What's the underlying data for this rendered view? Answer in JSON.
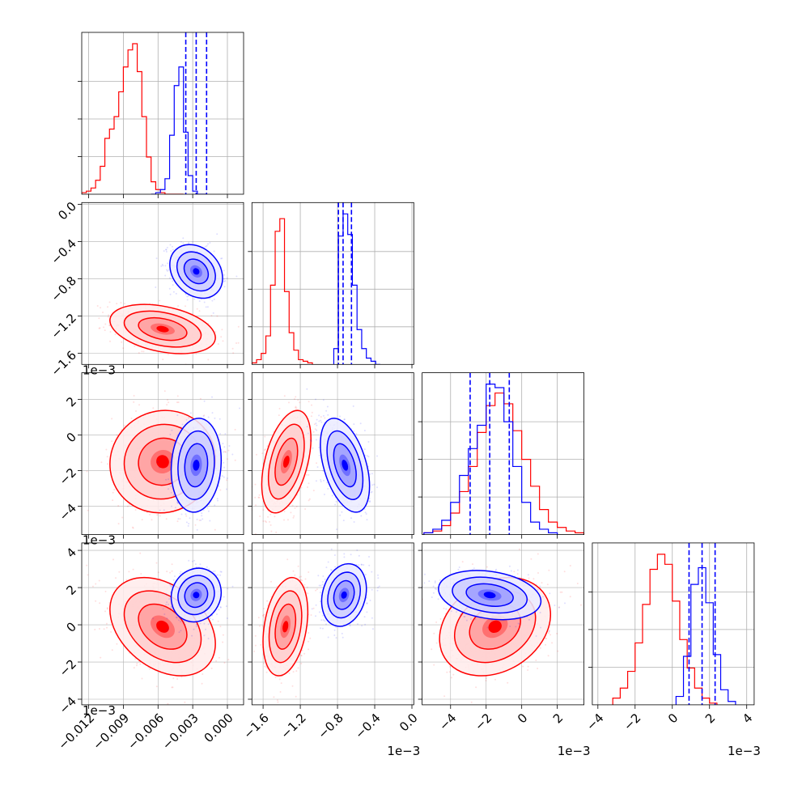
{
  "chart_data": {
    "type": "corner",
    "colors": {
      "sample_a": "#0000ff",
      "sample_b": "#ff0000",
      "grid": "#b0b0b0"
    },
    "params": [
      {
        "range": [
          -0.0126,
          0.0014
        ],
        "ticks": [
          -0.012,
          -0.009,
          -0.006,
          -0.003,
          0.0
        ],
        "tick_labels": [
          "−0.012",
          "−0.009",
          "−0.006",
          "−0.003",
          "0.000"
        ],
        "offset_text": ""
      },
      {
        "range": [
          -0.00172,
          2e-05
        ],
        "ticks": [
          -0.0016,
          -0.0012,
          -0.0008,
          -0.0004,
          0.0
        ],
        "tick_labels": [
          "−1.6",
          "−1.2",
          "−0.8",
          "−0.4",
          "0.0"
        ],
        "offset_text": "1e−3"
      },
      {
        "range": [
          -0.0056,
          0.0035
        ],
        "ticks": [
          -0.004,
          -0.002,
          0.0,
          0.002
        ],
        "tick_labels": [
          "−4",
          "−2",
          "0",
          "2"
        ],
        "offset_text": "1e−3"
      },
      {
        "range": [
          -0.0043,
          0.0044
        ],
        "ticks": [
          -0.004,
          -0.002,
          0.0,
          0.002,
          0.004
        ],
        "tick_labels": [
          "−4",
          "−2",
          "0",
          "2",
          "4"
        ],
        "offset_text": "1e−3"
      }
    ],
    "histograms": [
      {
        "param": 0,
        "blue_edges_start": -0.0066,
        "blue_bin": 0.0004,
        "blue": [
          0,
          1,
          3,
          10,
          38,
          70,
          82,
          40,
          12,
          2,
          0,
          0
        ],
        "red_edges_start": -0.0126,
        "red_bin": 0.0004,
        "red": [
          1,
          2,
          4,
          9,
          18,
          36,
          42,
          50,
          66,
          82,
          93,
          97,
          79,
          50,
          24,
          8,
          3,
          1,
          0,
          0,
          0,
          0
        ],
        "blue_quantiles": [
          -0.0036,
          -0.0027,
          -0.0018
        ]
      },
      {
        "param": 1,
        "blue_edges_start": -0.00084,
        "blue_bin": 5e-05,
        "blue": [
          10,
          81,
          95,
          82,
          50,
          22,
          10,
          4,
          2,
          0
        ],
        "red_edges_start": -0.00172,
        "red_bin": 5e-05,
        "red": [
          1,
          3,
          7,
          18,
          50,
          84,
          92,
          46,
          20,
          9,
          3,
          2,
          1
        ],
        "blue_quantiles": [
          -0.00079,
          -0.00074,
          -0.00065
        ]
      },
      {
        "param": 2,
        "blue_edges_start": -0.0055,
        "blue_bin": 0.0005,
        "blue": [
          1,
          3,
          8,
          18,
          33,
          48,
          61,
          84,
          82,
          63,
          38,
          18,
          7,
          3,
          1
        ],
        "red_edges_start": -0.0055,
        "red_bin": 0.0005,
        "red": [
          1,
          2,
          5,
          12,
          24,
          38,
          57,
          72,
          79,
          73,
          58,
          42,
          27,
          14,
          7,
          4,
          2,
          1
        ],
        "blue_quantiles": [
          -0.0029,
          -0.0018,
          -0.0007
        ]
      },
      {
        "param": 3,
        "blue_edges_start": 0.0002,
        "blue_bin": 0.0004,
        "blue": [
          5,
          29,
          72,
          82,
          61,
          30,
          9,
          2
        ],
        "red_edges_start": -0.0032,
        "red_bin": 0.0004,
        "red": [
          4,
          10,
          20,
          37,
          60,
          81,
          90,
          84,
          62,
          39,
          22,
          10,
          4,
          1
        ],
        "blue_quantiles": [
          0.0009,
          0.0016,
          0.0023
        ]
      }
    ],
    "blobs": [
      {
        "row": 1,
        "col": 0,
        "blue": {
          "cx": -0.0027,
          "cy": -0.00072,
          "sx": 0.00095,
          "sy": 0.00012,
          "rho": -0.25
        },
        "red": {
          "cx": -0.0056,
          "cy": -0.00134,
          "sx": 0.0019,
          "sy": 0.00011,
          "rho": -0.35
        }
      },
      {
        "row": 2,
        "col": 0,
        "blue": {
          "cx": -0.0027,
          "cy": -0.0017,
          "sx": 0.0009,
          "sy": 0.0011,
          "rho": 0.1
        },
        "red": {
          "cx": -0.0056,
          "cy": -0.0015,
          "sx": 0.0019,
          "sy": 0.0012,
          "rho": 0.05
        }
      },
      {
        "row": 3,
        "col": 0,
        "blue": {
          "cx": -0.0027,
          "cy": 0.0016,
          "sx": 0.0009,
          "sy": 0.0006,
          "rho": 0.1
        },
        "red": {
          "cx": -0.0056,
          "cy": -0.0001,
          "sx": 0.0019,
          "sy": 0.0011,
          "rho": -0.35
        }
      },
      {
        "row": 2,
        "col": 1,
        "blue": {
          "cx": -0.00072,
          "cy": -0.0017,
          "sx": 0.00011,
          "sy": 0.0011,
          "rho": -0.45
        },
        "red": {
          "cx": -0.00135,
          "cy": -0.0015,
          "sx": 0.00011,
          "sy": 0.0012,
          "rho": 0.45
        }
      },
      {
        "row": 3,
        "col": 1,
        "blue": {
          "cx": -0.00073,
          "cy": 0.0016,
          "sx": 0.0001,
          "sy": 0.0007,
          "rho": 0.2
        },
        "red": {
          "cx": -0.00136,
          "cy": -0.0001,
          "sx": 0.0001,
          "sy": 0.0011,
          "rho": 0.3
        }
      },
      {
        "row": 3,
        "col": 2,
        "blue": {
          "cx": -0.0018,
          "cy": 0.0016,
          "sx": 0.0012,
          "sy": 0.00055,
          "rho": -0.25
        },
        "red": {
          "cx": -0.0015,
          "cy": -0.0001,
          "sx": 0.0013,
          "sy": 0.0011,
          "rho": 0.25
        }
      }
    ]
  }
}
